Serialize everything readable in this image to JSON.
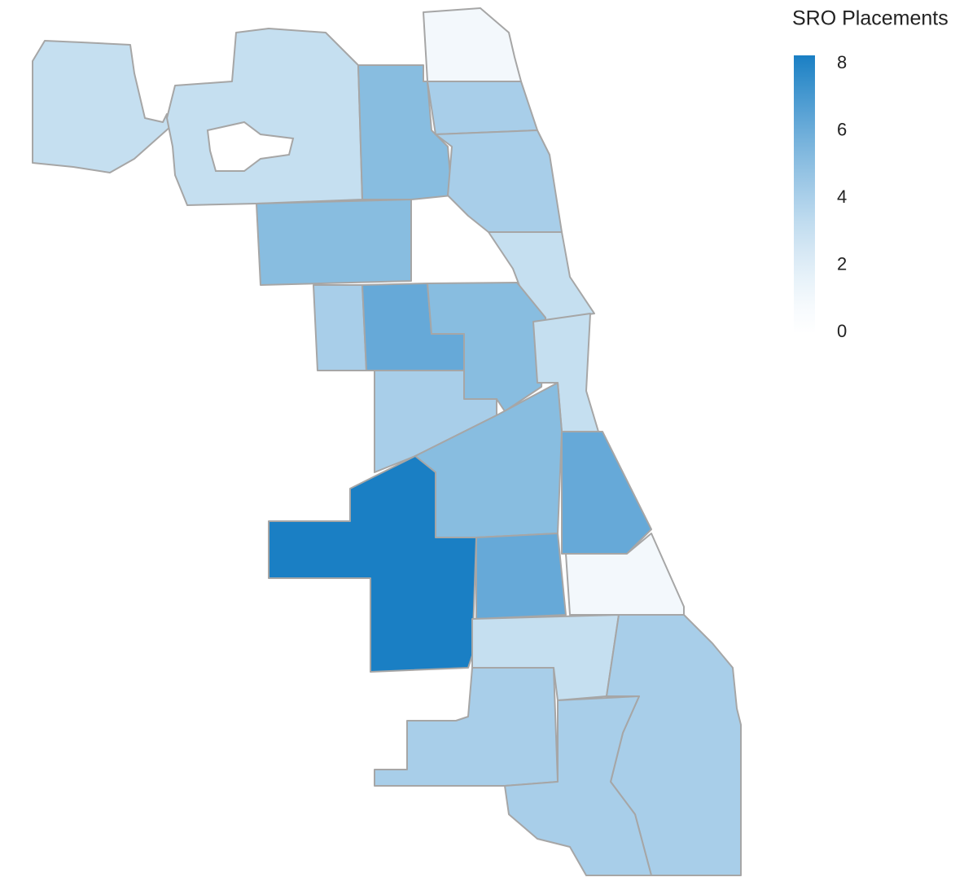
{
  "chart_data": {
    "type": "choropleth",
    "title": "SRO Placements",
    "values": [
      3,
      3,
      1,
      5,
      4,
      4,
      3,
      5,
      4,
      6,
      5,
      3,
      4,
      5,
      6,
      8,
      6,
      1,
      3,
      4,
      4,
      4
    ],
    "colors": [
      "#ffffff",
      "#1a7fc4"
    ],
    "clim": [
      0,
      8
    ],
    "cticks": [
      0,
      2,
      4,
      6,
      8
    ]
  }
}
